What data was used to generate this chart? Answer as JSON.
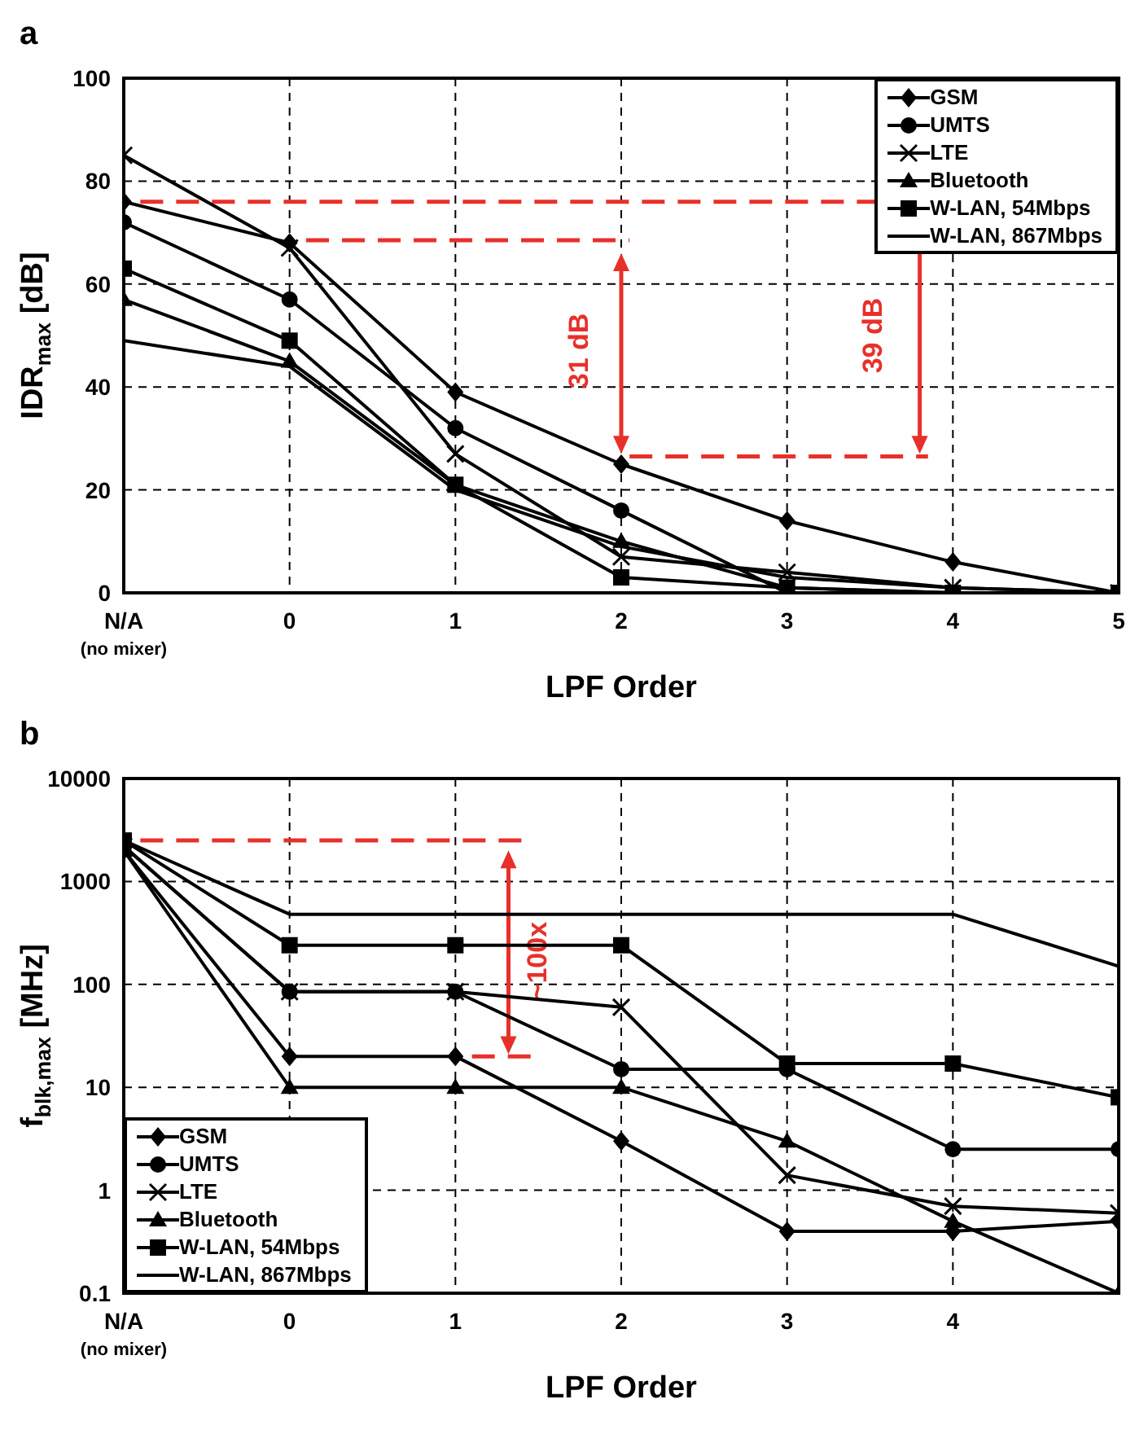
{
  "chart_data": [
    {
      "type": "line",
      "title": "a",
      "xlabel": "LPF Order",
      "ylabel": "IDR$_{max}$ [dB]",
      "categories": [
        "N/A\n(no mixer)",
        "0",
        "1",
        "2",
        "3",
        "4",
        "5"
      ],
      "ylim": [
        0,
        100
      ],
      "yticks": [
        0,
        20,
        40,
        60,
        80,
        100
      ],
      "grid": true,
      "legend": "top right",
      "annotations": [
        "31 dB",
        "39 dB"
      ],
      "series": [
        {
          "name": "GSM",
          "color": "#000000",
          "marker": "diamond",
          "values": [
            76,
            68,
            39,
            25,
            14,
            6,
            0
          ]
        },
        {
          "name": "UMTS",
          "color": "#000000",
          "marker": "circle",
          "values": [
            72,
            57,
            32,
            16,
            0,
            0,
            0
          ]
        },
        {
          "name": "LTE",
          "color": "#000000",
          "marker": "cross",
          "values": [
            85,
            67,
            27,
            7,
            4,
            1,
            0
          ]
        },
        {
          "name": "Bluetooth",
          "color": "#000000",
          "marker": "triangle",
          "values": [
            57,
            45,
            21,
            10,
            1,
            0,
            0
          ]
        },
        {
          "name": "W-LAN, 54Mbps",
          "color": "#000000",
          "marker": "square",
          "values": [
            63,
            49,
            21,
            3,
            1,
            0,
            0
          ]
        },
        {
          "name": "W-LAN, 867Mbps",
          "color": "#000000",
          "marker": "none",
          "values": [
            49,
            44,
            20,
            9,
            3,
            1,
            0
          ]
        }
      ]
    },
    {
      "type": "line",
      "title": "b",
      "xlabel": "LPF Order",
      "ylabel": "f$_{blk,max}$ [MHz]",
      "categories": [
        "N/A\n(no mixer)",
        "0",
        "1",
        "2",
        "3",
        "4",
        null
      ],
      "log": "y",
      "ylim": [
        0.1,
        10000
      ],
      "yticks": [
        0.1,
        1,
        10,
        100,
        1000,
        10000
      ],
      "grid": true,
      "legend": "bottom left",
      "annotations": [
        "~100x"
      ],
      "series": [
        {
          "name": "GSM",
          "color": "#000000",
          "marker": "diamond",
          "values": [
            2000,
            20,
            20,
            3,
            0.4,
            0.4,
            0.5
          ]
        },
        {
          "name": "UMTS",
          "color": "#000000",
          "marker": "circle",
          "values": [
            2200,
            85,
            85,
            15,
            15,
            2.5,
            2.5
          ]
        },
        {
          "name": "LTE",
          "color": "#000000",
          "marker": "cross",
          "values": [
            2200,
            85,
            85,
            60,
            1.4,
            0.7,
            0.6
          ]
        },
        {
          "name": "Bluetooth",
          "color": "#000000",
          "marker": "triangle",
          "values": [
            2000,
            10,
            10,
            10,
            3,
            0.5,
            0.1
          ]
        },
        {
          "name": "W-LAN, 54Mbps",
          "color": "#000000",
          "marker": "square",
          "values": [
            2500,
            240,
            240,
            240,
            17,
            17,
            8
          ]
        },
        {
          "name": "W-LAN, 867Mbps",
          "color": "#000000",
          "marker": "none",
          "values": [
            2500,
            480,
            480,
            480,
            480,
            480,
            150
          ]
        }
      ]
    }
  ]
}
